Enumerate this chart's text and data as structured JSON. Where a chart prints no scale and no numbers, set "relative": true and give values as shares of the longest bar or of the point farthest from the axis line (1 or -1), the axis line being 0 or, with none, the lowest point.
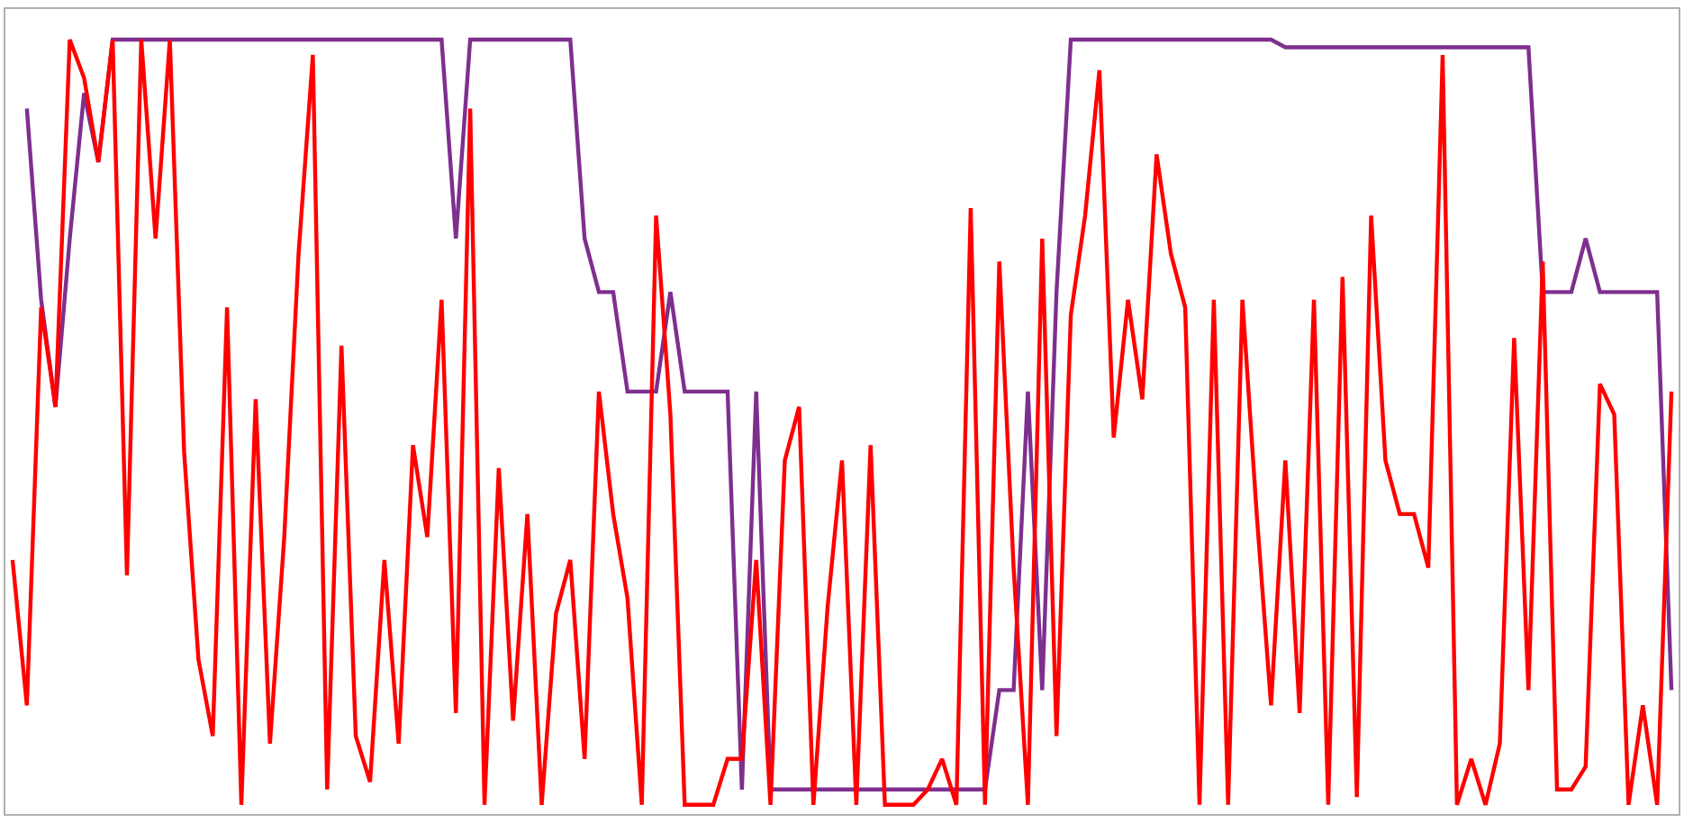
{
  "chart_data": {
    "type": "line",
    "relative": true,
    "categories": [
      null,
      null,
      null,
      null,
      null,
      null,
      null,
      null,
      null,
      null,
      null,
      null,
      null,
      null,
      null,
      null,
      null,
      null,
      null,
      null,
      null,
      null,
      null,
      null,
      null,
      null,
      null,
      null,
      null,
      null,
      null,
      null,
      null,
      null,
      null,
      null,
      null,
      null,
      null,
      null,
      null,
      null,
      null,
      null,
      null,
      null,
      null,
      null,
      null,
      null,
      null,
      null,
      null,
      null,
      null,
      null,
      null,
      null,
      null,
      null,
      null,
      null,
      null,
      null,
      null,
      null,
      null,
      null,
      null,
      null,
      null,
      null,
      null,
      null,
      null,
      null,
      null,
      null,
      null,
      null,
      null,
      null,
      null,
      null,
      null,
      null,
      null,
      null,
      null,
      null,
      null,
      null,
      null,
      null,
      null,
      null,
      null,
      null,
      null,
      null,
      null,
      null,
      null,
      null,
      null,
      null,
      null,
      null,
      null,
      null,
      null,
      null,
      null,
      null,
      null,
      null,
      null
    ],
    "series": [
      {
        "color": "#7e2f8e",
        "values": [
          null,
          0.91,
          0.66,
          0.52,
          0.74,
          0.93,
          0.84,
          1.0,
          1.0,
          1.0,
          1.0,
          1.0,
          1.0,
          1.0,
          1.0,
          1.0,
          1.0,
          1.0,
          1.0,
          1.0,
          1.0,
          1.0,
          1.0,
          1.0,
          1.0,
          1.0,
          1.0,
          1.0,
          1.0,
          1.0,
          1.0,
          0.74,
          1.0,
          1.0,
          1.0,
          1.0,
          1.0,
          1.0,
          1.0,
          1.0,
          0.74,
          0.67,
          0.67,
          0.54,
          0.54,
          0.54,
          0.67,
          0.54,
          0.54,
          0.54,
          0.54,
          0.02,
          0.54,
          0.02,
          0.02,
          0.02,
          0.02,
          0.02,
          0.02,
          0.02,
          0.02,
          0.02,
          0.02,
          0.02,
          0.02,
          0.02,
          0.02,
          0.02,
          0.02,
          0.15,
          0.15,
          0.54,
          0.15,
          0.67,
          1.0,
          1.0,
          1.0,
          1.0,
          1.0,
          1.0,
          1.0,
          1.0,
          1.0,
          1.0,
          1.0,
          1.0,
          1.0,
          1.0,
          1.0,
          0.99,
          0.99,
          0.99,
          0.99,
          0.99,
          0.99,
          0.99,
          0.99,
          0.99,
          0.99,
          0.99,
          0.99,
          0.99,
          0.99,
          0.99,
          0.99,
          0.99,
          0.99,
          0.67,
          0.67,
          0.67,
          0.74,
          0.67,
          0.67,
          0.67,
          0.67,
          0.67,
          0.15
        ]
      },
      {
        "color": "#ff0000",
        "values": [
          0.32,
          0.13,
          0.65,
          0.52,
          1.0,
          0.95,
          0.84,
          1.0,
          0.3,
          1.0,
          0.74,
          1.0,
          0.46,
          0.19,
          0.09,
          0.65,
          0.0,
          0.53,
          0.08,
          0.35,
          0.72,
          0.98,
          0.02,
          0.6,
          0.09,
          0.03,
          0.32,
          0.08,
          0.47,
          0.35,
          0.66,
          0.12,
          0.91,
          0.0,
          0.44,
          0.11,
          0.38,
          0.0,
          0.25,
          0.32,
          0.06,
          0.54,
          0.38,
          0.27,
          0.0,
          0.77,
          0.51,
          0.0,
          0.0,
          0.0,
          0.06,
          0.06,
          0.32,
          0.0,
          0.45,
          0.52,
          0.0,
          0.26,
          0.45,
          0.0,
          0.47,
          0.0,
          0.0,
          0.0,
          0.02,
          0.06,
          0.0,
          0.78,
          0.0,
          0.71,
          0.31,
          0.0,
          0.74,
          0.09,
          0.64,
          0.77,
          0.96,
          0.48,
          0.66,
          0.53,
          0.85,
          0.72,
          0.65,
          0.0,
          0.66,
          0.0,
          0.66,
          0.38,
          0.13,
          0.45,
          0.12,
          0.66,
          0.0,
          0.69,
          0.01,
          0.77,
          0.45,
          0.38,
          0.38,
          0.31,
          0.98,
          0.0,
          0.06,
          0.0,
          0.08,
          0.61,
          0.15,
          0.71,
          0.02,
          0.02,
          0.05,
          0.55,
          0.51,
          0.0,
          0.13,
          0.0,
          0.54
        ]
      }
    ]
  }
}
